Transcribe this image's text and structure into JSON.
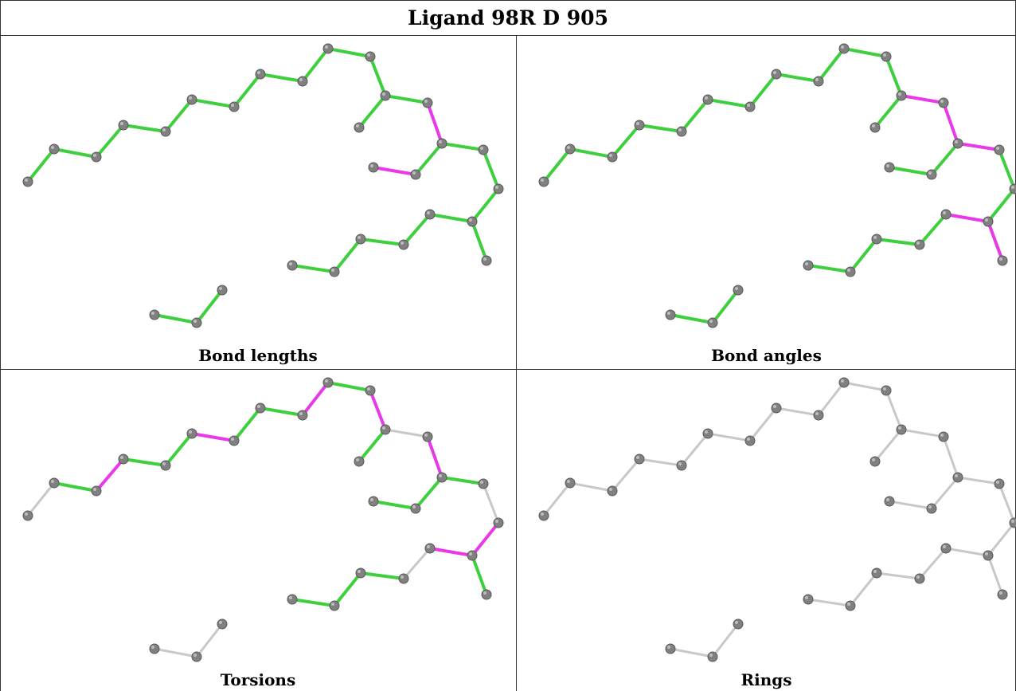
{
  "title": "Ligand 98R D 905",
  "panels": [
    {
      "key": "bond_lengths",
      "caption": "Bond lengths"
    },
    {
      "key": "bond_angles",
      "caption": "Bond angles"
    },
    {
      "key": "torsions",
      "caption": "Torsions"
    },
    {
      "key": "rings",
      "caption": "Rings"
    }
  ],
  "colors": {
    "outlier": "#e838e8",
    "ok": "#3ecf3e",
    "not_assessed": "#c8c8c8",
    "atom": "#808080",
    "border": "#333333"
  },
  "bond_states": {
    "bond_lengths": [
      "ok",
      "ok",
      "ok",
      "ok",
      "ok",
      "ok",
      "ok",
      "ok",
      "ok",
      "ok",
      "ok",
      "ok",
      "ok",
      "outlier",
      "ok",
      "ok",
      "ok",
      "ok",
      "outlier",
      "ok",
      "ok",
      "ok",
      "ok",
      "ok",
      "ok",
      "ok",
      "ok",
      "ok",
      "ok",
      "ok"
    ],
    "bond_angles": [
      "ok",
      "ok",
      "ok",
      "ok",
      "ok",
      "ok",
      "ok",
      "ok",
      "ok",
      "ok",
      "ok",
      "ok",
      "outlier",
      "outlier",
      "outlier",
      "ok",
      "ok",
      "ok",
      "ok",
      "outlier",
      "outlier",
      "ok",
      "ok",
      "ok",
      "ok",
      "ok",
      "ok",
      "none",
      "none",
      "ok"
    ],
    "torsions": [
      "none",
      "ok",
      "outlier",
      "ok",
      "ok",
      "outlier",
      "ok",
      "ok",
      "outlier",
      "ok",
      "outlier",
      "ok",
      "none",
      "outlier",
      "ok",
      "ok",
      "none",
      "outlier",
      "ok",
      "outlier",
      "ok",
      "none",
      "ok",
      "ok",
      "ok",
      "none",
      "none",
      "none",
      "none",
      "outlier"
    ],
    "rings": [
      "none",
      "none",
      "none",
      "none",
      "none",
      "none",
      "none",
      "none",
      "none",
      "none",
      "none",
      "none",
      "none",
      "none",
      "none",
      "none",
      "none",
      "none",
      "none",
      "none",
      "none",
      "none",
      "none",
      "none",
      "none",
      "none",
      "none",
      "none",
      "none",
      "none"
    ]
  }
}
